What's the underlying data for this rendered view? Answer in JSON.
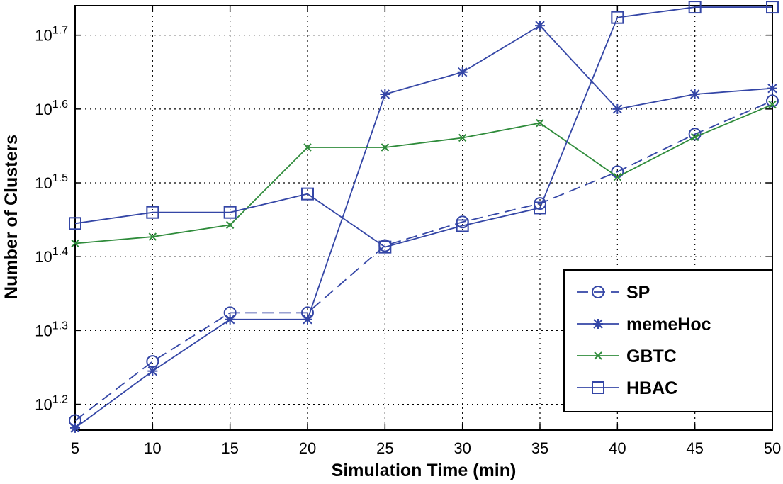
{
  "chart_data": {
    "type": "line",
    "xlabel": "Simulation Time (min)",
    "ylabel": "Number of Clusters",
    "yscale": "log10",
    "xlim": [
      5,
      50
    ],
    "ylim_log10": [
      1.165,
      1.74
    ],
    "grid": true,
    "legend_position": "bottom-right",
    "x": [
      5,
      10,
      15,
      20,
      25,
      30,
      35,
      40,
      45,
      50
    ],
    "x_tick_labels": [
      "5",
      "10",
      "15",
      "20",
      "25",
      "30",
      "35",
      "40",
      "45",
      "50"
    ],
    "y_ticks": [
      {
        "exp": 1.2,
        "base": "10",
        "power": "1.2"
      },
      {
        "exp": 1.3,
        "base": "10",
        "power": "1.3"
      },
      {
        "exp": 1.4,
        "base": "10",
        "power": "1.4"
      },
      {
        "exp": 1.5,
        "base": "10",
        "power": "1.5"
      },
      {
        "exp": 1.6,
        "base": "10",
        "power": "1.6"
      },
      {
        "exp": 1.7,
        "base": "10",
        "power": "1.7"
      }
    ],
    "series": [
      {
        "name": "SP",
        "color": "#3446a6",
        "dash": true,
        "marker": "circle",
        "log10_values": [
          1.178,
          1.258,
          1.324,
          1.324,
          1.415,
          1.447,
          1.472,
          1.515,
          1.566,
          1.611
        ]
      },
      {
        "name": "memeHoc",
        "color": "#3446a6",
        "dash": false,
        "marker": "star",
        "log10_values": [
          1.168,
          1.245,
          1.315,
          1.315,
          1.62,
          1.65,
          1.713,
          1.6,
          1.62,
          1.628
        ]
      },
      {
        "name": "GBTC",
        "color": "#2e8b3a",
        "dash": false,
        "marker": "x",
        "log10_values": [
          1.418,
          1.427,
          1.443,
          1.548,
          1.548,
          1.561,
          1.581,
          1.508,
          1.562,
          1.606
        ]
      },
      {
        "name": "HBAC",
        "color": "#3446a6",
        "dash": false,
        "marker": "square",
        "log10_values": [
          1.445,
          1.46,
          1.46,
          1.485,
          1.413,
          1.442,
          1.466,
          1.724,
          1.738,
          1.738
        ]
      }
    ]
  }
}
